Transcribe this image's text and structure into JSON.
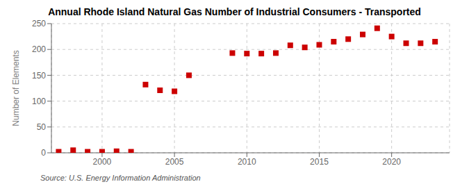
{
  "chart_data": {
    "type": "scatter",
    "title": "Annual Rhode Island Natural Gas Number of Industrial Consumers - Transported",
    "ylabel": "Number of Elements",
    "annotations": [
      "Source: U.S. Energy Information Administration"
    ],
    "x": [
      1997,
      1998,
      1999,
      2000,
      2001,
      2002,
      2003,
      2004,
      2005,
      2006,
      2009,
      2010,
      2011,
      2012,
      2013,
      2014,
      2015,
      2016,
      2017,
      2018,
      2019,
      2020,
      2021,
      2022,
      2023
    ],
    "values": [
      2,
      5,
      2,
      2,
      3,
      2,
      132,
      121,
      119,
      150,
      193,
      192,
      192,
      193,
      208,
      204,
      209,
      215,
      220,
      229,
      241,
      225,
      212,
      212,
      215
    ],
    "color": "#cc0000",
    "marker": "square",
    "xlim": [
      1996.5,
      2024
    ],
    "xticks": [
      2000,
      2005,
      2010,
      2015,
      2020
    ],
    "ylim": [
      0,
      250
    ],
    "yticks": [
      0,
      50,
      100,
      150,
      200,
      250
    ],
    "grid": true
  }
}
